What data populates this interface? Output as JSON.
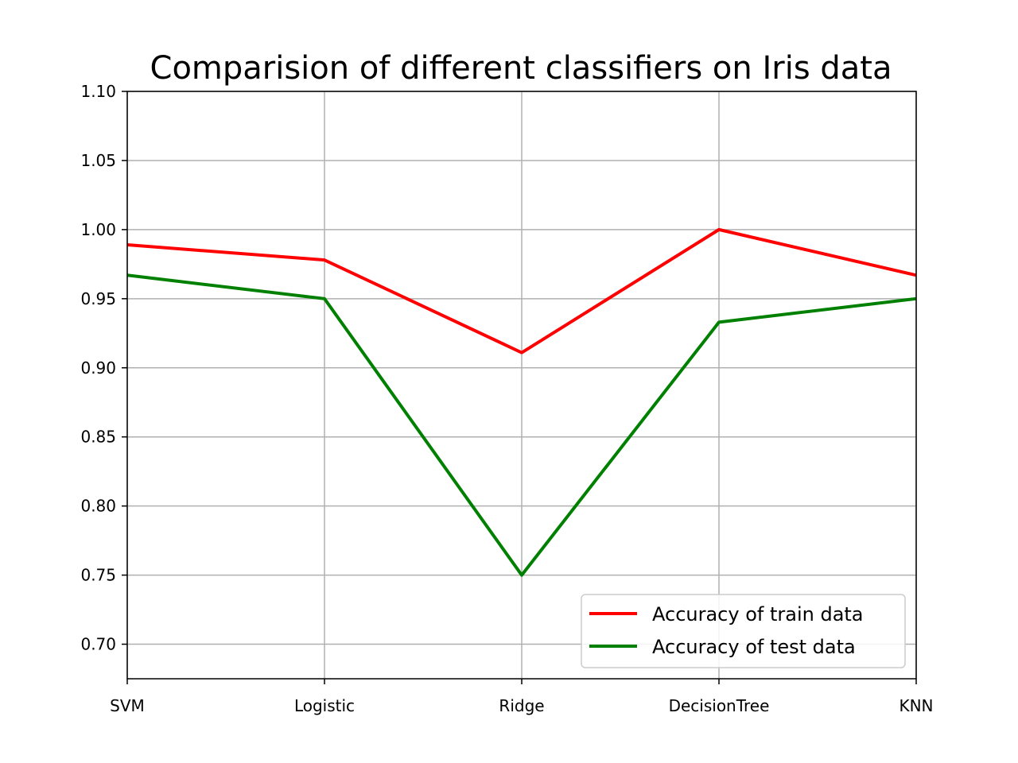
{
  "chart_data": {
    "type": "line",
    "title": "Comparision of different classifiers on Iris data",
    "xlabel": "",
    "ylabel": "",
    "categories": [
      "SVM",
      "Logistic",
      "Ridge",
      "DecisionTree",
      "KNN"
    ],
    "ylim": [
      0.675,
      1.1
    ],
    "yticks": [
      "0.70",
      "0.75",
      "0.80",
      "0.85",
      "0.90",
      "0.95",
      "1.00",
      "1.05",
      "1.10"
    ],
    "grid": true,
    "legend_position": "lower-right",
    "series": [
      {
        "name": "Accuracy of train data",
        "color": "#ff0000",
        "values": [
          0.989,
          0.978,
          0.911,
          1.0,
          0.967
        ]
      },
      {
        "name": "Accuracy of test data",
        "color": "#008000",
        "values": [
          0.967,
          0.95,
          0.75,
          0.933,
          0.95
        ]
      }
    ]
  }
}
